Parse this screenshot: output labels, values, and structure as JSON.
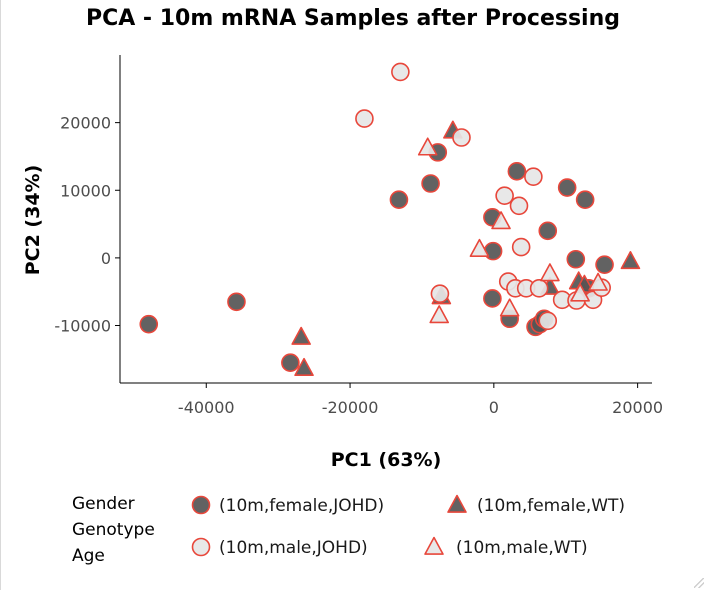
{
  "chart_data": {
    "type": "scatter",
    "title": "PCA - 10m mRNA Samples after Processing",
    "xlabel": "PC1 (63%)",
    "ylabel": "PC2 (34%)",
    "xlim": [
      -52000,
      22000
    ],
    "ylim": [
      -18500,
      30000
    ],
    "xticks": [
      -40000,
      -20000,
      0,
      20000
    ],
    "yticks": [
      -10000,
      0,
      10000,
      20000
    ],
    "xtick_labels": [
      "-40000",
      "-20000",
      "0",
      "20000"
    ],
    "ytick_labels": [
      "-10000",
      "0",
      "10000",
      "20000"
    ],
    "grid": false,
    "legend_position": "bottom",
    "legend_title": [
      "Gender",
      "Genotype",
      "Age"
    ],
    "series": [
      {
        "name": "(10m,female,JOHD)",
        "marker": "circle",
        "fill": "#555555",
        "stroke": "#e8473b",
        "points": [
          [
            -48000,
            -9800
          ],
          [
            -35800,
            -6500
          ],
          [
            -28300,
            -15500
          ],
          [
            -13200,
            8600
          ],
          [
            -8800,
            11000
          ],
          [
            -7800,
            15600
          ],
          [
            -200,
            6000
          ],
          [
            -100,
            1000
          ],
          [
            -200,
            -6000
          ],
          [
            2200,
            -9000
          ],
          [
            3200,
            12800
          ],
          [
            5800,
            -10200
          ],
          [
            6400,
            -9800
          ],
          [
            7500,
            4000
          ],
          [
            7000,
            -9000
          ],
          [
            10200,
            10400
          ],
          [
            11400,
            -200
          ],
          [
            12700,
            8600
          ],
          [
            15400,
            -1000
          ],
          [
            13200,
            -4500
          ]
        ]
      },
      {
        "name": "(10m,female,WT)",
        "marker": "triangle",
        "fill": "#555555",
        "stroke": "#e8473b",
        "points": [
          [
            -5700,
            18800
          ],
          [
            -26800,
            -11700
          ],
          [
            -26400,
            -16300
          ],
          [
            -7300,
            -5700
          ],
          [
            7800,
            -4300
          ],
          [
            11800,
            -3500
          ],
          [
            12600,
            -4000
          ],
          [
            19000,
            -500
          ]
        ]
      },
      {
        "name": "(10m,male,JOHD)",
        "marker": "circle",
        "fill": "#e6e6e6",
        "stroke": "#e8473b",
        "points": [
          [
            -13000,
            27500
          ],
          [
            -18000,
            20600
          ],
          [
            -4500,
            17800
          ],
          [
            1500,
            9200
          ],
          [
            5500,
            12000
          ],
          [
            3500,
            7700
          ],
          [
            3800,
            1600
          ],
          [
            -7500,
            -5300
          ],
          [
            2000,
            -3500
          ],
          [
            3000,
            -4500
          ],
          [
            4500,
            -4500
          ],
          [
            6300,
            -4500
          ],
          [
            7500,
            -9300
          ],
          [
            9500,
            -6200
          ],
          [
            11500,
            -6300
          ],
          [
            13800,
            -6200
          ],
          [
            15000,
            -4400
          ]
        ]
      },
      {
        "name": "(10m,male,WT)",
        "marker": "triangle",
        "fill": "#e6e6e6",
        "stroke": "#e8473b",
        "points": [
          [
            -9200,
            16300
          ],
          [
            1000,
            5400
          ],
          [
            -2000,
            1300
          ],
          [
            -7600,
            -8500
          ],
          [
            2200,
            -7500
          ],
          [
            7800,
            -2300
          ],
          [
            12000,
            -5300
          ],
          [
            14500,
            -3700
          ]
        ]
      }
    ]
  }
}
